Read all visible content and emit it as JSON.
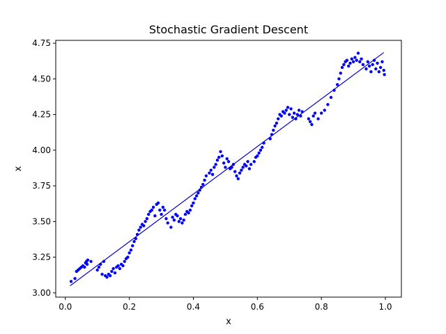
{
  "chart_data": {
    "type": "scatter",
    "title": "Stochastic Gradient Descent",
    "xlabel": "x",
    "ylabel": "x",
    "xlim": [
      -0.03,
      1.05
    ],
    "ylim": [
      2.97,
      4.77
    ],
    "xticks": [
      {
        "value": 0.0,
        "label": "0.0"
      },
      {
        "value": 0.2,
        "label": "0.2"
      },
      {
        "value": 0.4,
        "label": "0.4"
      },
      {
        "value": 0.6,
        "label": "0.6"
      },
      {
        "value": 0.8,
        "label": "0.8"
      },
      {
        "value": 1.0,
        "label": "1.0"
      }
    ],
    "yticks": [
      {
        "value": 3.0,
        "label": "3.00"
      },
      {
        "value": 3.25,
        "label": "3.25"
      },
      {
        "value": 3.5,
        "label": "3.50"
      },
      {
        "value": 3.75,
        "label": "3.75"
      },
      {
        "value": 4.0,
        "label": "4.00"
      },
      {
        "value": 4.25,
        "label": "4.25"
      },
      {
        "value": 4.5,
        "label": "4.50"
      },
      {
        "value": 4.75,
        "label": "4.75"
      }
    ],
    "grid": false,
    "colors": {
      "points": "#0000ff",
      "line": "#0000cc"
    },
    "fit_line": {
      "x": [
        0.015,
        0.995
      ],
      "y": [
        3.05,
        4.685
      ]
    },
    "scatter": {
      "x": [
        0.018,
        0.03,
        0.035,
        0.04,
        0.045,
        0.05,
        0.055,
        0.06,
        0.063,
        0.066,
        0.068,
        0.07,
        0.08,
        0.1,
        0.105,
        0.11,
        0.115,
        0.12,
        0.125,
        0.13,
        0.135,
        0.14,
        0.145,
        0.15,
        0.155,
        0.16,
        0.165,
        0.17,
        0.175,
        0.18,
        0.185,
        0.19,
        0.195,
        0.2,
        0.205,
        0.21,
        0.215,
        0.22,
        0.225,
        0.23,
        0.235,
        0.24,
        0.245,
        0.25,
        0.255,
        0.26,
        0.265,
        0.27,
        0.275,
        0.28,
        0.285,
        0.29,
        0.295,
        0.3,
        0.305,
        0.31,
        0.315,
        0.32,
        0.33,
        0.335,
        0.34,
        0.345,
        0.35,
        0.355,
        0.36,
        0.365,
        0.37,
        0.375,
        0.38,
        0.385,
        0.39,
        0.395,
        0.4,
        0.405,
        0.41,
        0.415,
        0.42,
        0.425,
        0.43,
        0.435,
        0.44,
        0.45,
        0.455,
        0.46,
        0.465,
        0.47,
        0.475,
        0.48,
        0.485,
        0.49,
        0.495,
        0.5,
        0.505,
        0.51,
        0.515,
        0.52,
        0.525,
        0.53,
        0.535,
        0.54,
        0.545,
        0.55,
        0.555,
        0.56,
        0.565,
        0.57,
        0.575,
        0.58,
        0.59,
        0.595,
        0.6,
        0.605,
        0.61,
        0.615,
        0.62,
        0.64,
        0.645,
        0.65,
        0.655,
        0.66,
        0.665,
        0.67,
        0.675,
        0.68,
        0.685,
        0.69,
        0.695,
        0.7,
        0.705,
        0.71,
        0.715,
        0.72,
        0.725,
        0.73,
        0.735,
        0.74,
        0.76,
        0.765,
        0.77,
        0.775,
        0.78,
        0.79,
        0.8,
        0.81,
        0.82,
        0.83,
        0.84,
        0.85,
        0.855,
        0.86,
        0.865,
        0.87,
        0.875,
        0.88,
        0.885,
        0.89,
        0.895,
        0.9,
        0.905,
        0.91,
        0.915,
        0.92,
        0.925,
        0.93,
        0.94,
        0.945,
        0.95,
        0.955,
        0.96,
        0.965,
        0.97,
        0.975,
        0.98,
        0.985,
        0.99,
        0.995,
        0.997
      ],
      "y": [
        3.08,
        3.1,
        3.15,
        3.16,
        3.17,
        3.18,
        3.19,
        3.18,
        3.21,
        3.22,
        3.2,
        3.23,
        3.22,
        3.16,
        3.18,
        3.2,
        3.13,
        3.22,
        3.12,
        3.11,
        3.13,
        3.12,
        3.15,
        3.17,
        3.14,
        3.18,
        3.19,
        3.17,
        3.2,
        3.19,
        3.22,
        3.24,
        3.25,
        3.28,
        3.3,
        3.33,
        3.36,
        3.38,
        3.41,
        3.44,
        3.46,
        3.48,
        3.47,
        3.5,
        3.52,
        3.55,
        3.57,
        3.58,
        3.6,
        3.54,
        3.62,
        3.63,
        3.58,
        3.55,
        3.6,
        3.58,
        3.52,
        3.49,
        3.46,
        3.53,
        3.51,
        3.55,
        3.54,
        3.5,
        3.52,
        3.49,
        3.51,
        3.55,
        3.57,
        3.56,
        3.58,
        3.61,
        3.63,
        3.66,
        3.68,
        3.7,
        3.72,
        3.74,
        3.76,
        3.79,
        3.82,
        3.84,
        3.86,
        3.83,
        3.88,
        3.9,
        3.93,
        3.95,
        3.99,
        3.96,
        3.91,
        3.88,
        3.94,
        3.92,
        3.87,
        3.88,
        3.9,
        3.85,
        3.82,
        3.8,
        3.84,
        3.86,
        3.88,
        3.9,
        3.89,
        3.92,
        3.87,
        3.9,
        3.92,
        3.95,
        3.96,
        3.98,
        4.0,
        4.02,
        4.05,
        4.08,
        4.11,
        4.14,
        4.17,
        4.19,
        4.22,
        4.25,
        4.24,
        4.27,
        4.26,
        4.28,
        4.3,
        4.25,
        4.29,
        4.23,
        4.26,
        4.22,
        4.25,
        4.28,
        4.24,
        4.27,
        4.22,
        4.2,
        4.18,
        4.24,
        4.26,
        4.22,
        4.26,
        4.28,
        4.32,
        4.37,
        4.42,
        4.46,
        4.5,
        4.54,
        4.58,
        4.6,
        4.62,
        4.63,
        4.59,
        4.61,
        4.64,
        4.62,
        4.65,
        4.63,
        4.68,
        4.62,
        4.64,
        4.6,
        4.57,
        4.62,
        4.59,
        4.55,
        4.6,
        4.63,
        4.57,
        4.61,
        4.55,
        4.58,
        4.62,
        4.56,
        4.53
      ]
    }
  }
}
